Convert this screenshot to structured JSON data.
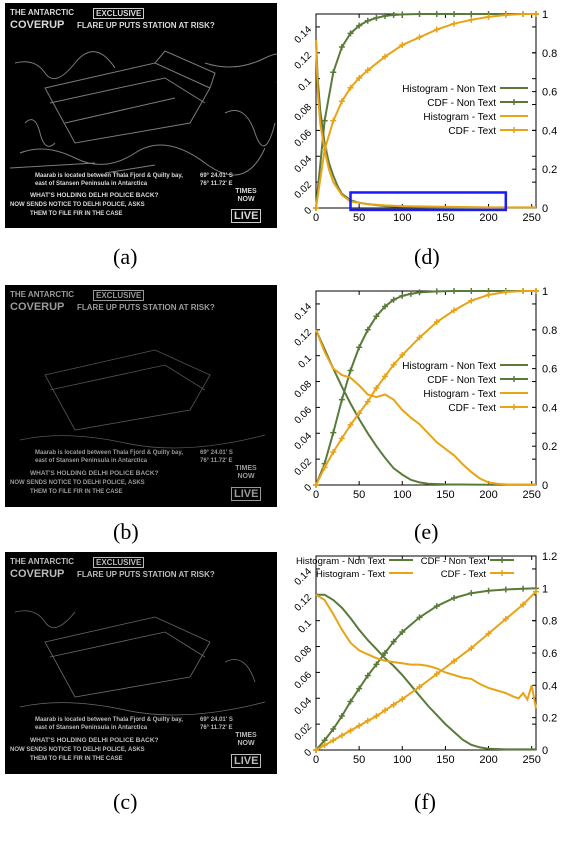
{
  "colors": {
    "green": "#5a7a3a",
    "orange": "#e8a317",
    "highlight": "#1a1aff"
  },
  "images": [
    {
      "caption": "(a)",
      "headline1": "THE ANTARCTIC",
      "badge": "EXCLUSIVE",
      "headline2": "COVERUP",
      "subhead": "FLARE UP PUTS STATION AT RISK?",
      "loc1": "Maarab is located between Thala Fjord & Quilty bay,",
      "loc2": "east of Stansen Peninsula in Antarctica",
      "coord1": "69° 24.01' S",
      "coord2": "76° 11.72' E",
      "ticker1": "WHAT'S HOLDING DELHI POLICE BACK?",
      "ticker2": "NOW SENDS NOTICE TO DELHI POLICE, ASKS",
      "ticker3": "THEM TO FILE FIR IN THE CASE",
      "live": "LIVE",
      "logo": "TIMES NOW"
    },
    {
      "caption": "(b)",
      "headline1": "THE ANTARCTIC",
      "badge": "EXCLUSIVE",
      "headline2": "COVERUP",
      "subhead": "FLARE UP PUTS STATION AT RISK?",
      "loc1": "Maarab is located between Thala Fjord & Quilty bay,",
      "loc2": "east of Stansen Peninsula in Antarctica",
      "coord1": "69° 24.01' S",
      "coord2": "76° 11.72' E",
      "ticker1": "WHAT'S HOLDING DELHI POLICE BACK?",
      "ticker2": "NOW SENDS NOTICE TO DELHI POLICE, ASKS",
      "ticker3": "THEM TO FILE FIR IN THE CASE",
      "live": "LIVE",
      "logo": "TIMES NOW"
    },
    {
      "caption": "(c)",
      "headline1": "THE ANTARCTIC",
      "badge": "EXCLUSIVE",
      "headline2": "COVERUP",
      "subhead": "FLARE UP PUTS STATION AT RISK?",
      "loc1": "Maarab is located between Thala Fjord & Quilty bay,",
      "loc2": "east of Stansen Peninsula in Antarctica",
      "coord1": "69° 24.01' S",
      "coord2": "76° 11.72' E",
      "ticker1": "WHAT'S HOLDING DELHI POLICE BACK?",
      "ticker2": "NOW SENDS NOTICE TO DELHI POLICE, ASKS",
      "ticker3": "THEM TO FILE FIR IN THE CASE",
      "live": "LIVE",
      "logo": "TIMES NOW"
    }
  ],
  "chart_data": [
    {
      "type": "line",
      "caption": "(d)",
      "xlim": [
        0,
        255
      ],
      "ylim": [
        0,
        0.15
      ],
      "y2lim": [
        0,
        1.0
      ],
      "xticks": [
        "0",
        "50",
        "100",
        "150",
        "200",
        "250"
      ],
      "yticks": [
        "0",
        "0.02",
        "0.04",
        "0.06",
        "0.08",
        "0.1",
        "0.12",
        "0.14"
      ],
      "y2ticks": [
        "0",
        "0.2",
        "0.4",
        "0.6",
        "0.8",
        "1"
      ],
      "legend_position": "right-middle",
      "highlight_box": {
        "x": [
          40,
          220
        ],
        "y": [
          -0.0015,
          0.012
        ]
      },
      "series": [
        {
          "name": "Histogram - Non Text",
          "axis": "y",
          "color": "green",
          "marker": "none",
          "x": [
            0,
            2,
            5,
            10,
            15,
            20,
            25,
            30,
            40,
            50,
            60,
            80,
            100,
            150,
            200,
            255
          ],
          "y": [
            0.13,
            0.1,
            0.075,
            0.05,
            0.035,
            0.025,
            0.017,
            0.011,
            0.006,
            0.004,
            0.003,
            0.0015,
            0.001,
            0.0005,
            0.0003,
            0.0003
          ]
        },
        {
          "name": "CDF - Non Text",
          "axis": "y2",
          "color": "green",
          "marker": "plus",
          "x": [
            0,
            10,
            20,
            30,
            40,
            50,
            60,
            70,
            80,
            90,
            100,
            120,
            140,
            160,
            180,
            200,
            220,
            240,
            255
          ],
          "y": [
            0.0,
            0.45,
            0.7,
            0.83,
            0.9,
            0.94,
            0.965,
            0.98,
            0.99,
            0.995,
            0.998,
            1.0,
            1.0,
            1.0,
            1.0,
            1.0,
            1.0,
            1.0,
            1.0
          ]
        },
        {
          "name": "Histogram - Text",
          "axis": "y",
          "color": "orange",
          "marker": "none",
          "x": [
            0,
            2,
            5,
            10,
            15,
            20,
            30,
            40,
            60,
            80,
            100,
            150,
            200,
            255
          ],
          "y": [
            0.13,
            0.09,
            0.065,
            0.045,
            0.03,
            0.02,
            0.01,
            0.005,
            0.003,
            0.002,
            0.0015,
            0.001,
            0.0005,
            0.0005
          ]
        },
        {
          "name": "CDF - Text",
          "axis": "y2",
          "color": "orange",
          "marker": "plus",
          "x": [
            0,
            10,
            20,
            30,
            40,
            50,
            60,
            80,
            100,
            120,
            140,
            160,
            180,
            200,
            220,
            240,
            255
          ],
          "y": [
            0.0,
            0.3,
            0.45,
            0.55,
            0.62,
            0.67,
            0.71,
            0.78,
            0.84,
            0.88,
            0.92,
            0.95,
            0.97,
            0.985,
            0.995,
            1.0,
            1.0
          ]
        }
      ]
    },
    {
      "type": "line",
      "caption": "(e)",
      "xlim": [
        0,
        255
      ],
      "ylim": [
        0,
        0.15
      ],
      "y2lim": [
        0,
        1.0
      ],
      "xticks": [
        "0",
        "50",
        "100",
        "150",
        "200",
        "250"
      ],
      "yticks": [
        "0",
        "0.02",
        "0.04",
        "0.06",
        "0.08",
        "0.1",
        "0.12",
        "0.14"
      ],
      "y2ticks": [
        "0",
        "0.2",
        "0.4",
        "0.6",
        "0.8",
        "1"
      ],
      "legend_position": "right-middle",
      "series": [
        {
          "name": "Histogram - Non Text",
          "axis": "y",
          "color": "green",
          "marker": "none",
          "x": [
            0,
            10,
            20,
            30,
            40,
            50,
            60,
            70,
            80,
            90,
            100,
            110,
            120,
            130,
            150,
            200,
            255
          ],
          "y": [
            0.12,
            0.105,
            0.09,
            0.076,
            0.063,
            0.051,
            0.04,
            0.03,
            0.021,
            0.013,
            0.008,
            0.004,
            0.002,
            0.001,
            0.0005,
            0.0002,
            0.0002
          ]
        },
        {
          "name": "CDF - Non Text",
          "axis": "y2",
          "color": "green",
          "marker": "plus",
          "x": [
            0,
            10,
            20,
            30,
            40,
            50,
            60,
            70,
            80,
            90,
            100,
            110,
            120,
            140,
            160,
            180,
            200,
            220,
            240,
            255
          ],
          "y": [
            0.0,
            0.11,
            0.27,
            0.44,
            0.59,
            0.71,
            0.8,
            0.87,
            0.92,
            0.955,
            0.975,
            0.985,
            0.993,
            0.998,
            1.0,
            1.0,
            1.0,
            1.0,
            1.0,
            1.0
          ]
        },
        {
          "name": "Histogram - Text",
          "axis": "y",
          "color": "orange",
          "marker": "none",
          "x": [
            0,
            10,
            20,
            30,
            40,
            50,
            60,
            70,
            80,
            90,
            100,
            110,
            120,
            130,
            140,
            150,
            160,
            170,
            180,
            190,
            200,
            210,
            220,
            230,
            255
          ],
          "y": [
            0.12,
            0.103,
            0.09,
            0.085,
            0.083,
            0.077,
            0.07,
            0.068,
            0.07,
            0.066,
            0.058,
            0.052,
            0.047,
            0.04,
            0.033,
            0.028,
            0.023,
            0.016,
            0.01,
            0.005,
            0.002,
            0.001,
            0.0005,
            0.0003,
            0.0003
          ]
        },
        {
          "name": "CDF - Text",
          "axis": "y2",
          "color": "orange",
          "marker": "plus",
          "x": [
            0,
            10,
            20,
            30,
            40,
            50,
            60,
            70,
            80,
            90,
            100,
            120,
            140,
            160,
            180,
            200,
            220,
            240,
            255
          ],
          "y": [
            0.0,
            0.09,
            0.17,
            0.24,
            0.31,
            0.37,
            0.43,
            0.5,
            0.56,
            0.62,
            0.67,
            0.76,
            0.84,
            0.9,
            0.95,
            0.98,
            0.995,
            1.0,
            1.0
          ]
        }
      ]
    },
    {
      "type": "line",
      "caption": "(f)",
      "xlim": [
        0,
        255
      ],
      "ylim": [
        0,
        0.15
      ],
      "y2lim": [
        0,
        1.2
      ],
      "xticks": [
        "0",
        "50",
        "100",
        "150",
        "200",
        "250"
      ],
      "yticks": [
        "0",
        "0.02",
        "0.04",
        "0.06",
        "0.08",
        "0.1",
        "0.12",
        "0.14"
      ],
      "y2ticks": [
        "0",
        "0.2",
        "0.4",
        "0.6",
        "0.8",
        "1",
        "1.2"
      ],
      "legend_position": "top",
      "series": [
        {
          "name": "Histogram - Non Text",
          "axis": "y",
          "color": "green",
          "marker": "none",
          "x": [
            0,
            10,
            20,
            30,
            40,
            50,
            60,
            70,
            80,
            90,
            100,
            110,
            120,
            130,
            140,
            150,
            160,
            170,
            180,
            190,
            200,
            220,
            255
          ],
          "y": [
            0.12,
            0.12,
            0.116,
            0.11,
            0.102,
            0.093,
            0.085,
            0.078,
            0.071,
            0.065,
            0.058,
            0.05,
            0.042,
            0.034,
            0.027,
            0.02,
            0.014,
            0.008,
            0.004,
            0.002,
            0.001,
            0.0005,
            0.0005
          ]
        },
        {
          "name": "CDF - Non Text",
          "axis": "y2",
          "color": "green",
          "marker": "plus",
          "x": [
            0,
            10,
            20,
            30,
            40,
            50,
            60,
            70,
            80,
            90,
            100,
            120,
            140,
            160,
            180,
            200,
            220,
            240,
            255
          ],
          "y": [
            0.0,
            0.06,
            0.13,
            0.21,
            0.3,
            0.38,
            0.46,
            0.53,
            0.6,
            0.67,
            0.73,
            0.82,
            0.89,
            0.94,
            0.97,
            0.985,
            0.993,
            0.998,
            1.0
          ]
        },
        {
          "name": "Histogram - Text",
          "axis": "y",
          "color": "orange",
          "marker": "none",
          "x": [
            0,
            10,
            20,
            30,
            40,
            50,
            60,
            70,
            80,
            90,
            100,
            110,
            120,
            130,
            140,
            150,
            160,
            170,
            180,
            190,
            200,
            210,
            220,
            230,
            235,
            240,
            245,
            250,
            255
          ],
          "y": [
            0.12,
            0.116,
            0.105,
            0.093,
            0.083,
            0.077,
            0.074,
            0.071,
            0.069,
            0.068,
            0.067,
            0.066,
            0.066,
            0.065,
            0.063,
            0.06,
            0.058,
            0.056,
            0.055,
            0.051,
            0.048,
            0.046,
            0.044,
            0.041,
            0.04,
            0.044,
            0.039,
            0.05,
            0.032
          ]
        },
        {
          "name": "CDF - Text",
          "axis": "y2",
          "color": "orange",
          "marker": "plus",
          "x": [
            0,
            10,
            20,
            30,
            40,
            50,
            60,
            70,
            80,
            90,
            100,
            120,
            140,
            160,
            180,
            200,
            220,
            240,
            255
          ],
          "y": [
            0.0,
            0.03,
            0.06,
            0.09,
            0.12,
            0.15,
            0.18,
            0.21,
            0.245,
            0.28,
            0.315,
            0.39,
            0.47,
            0.55,
            0.63,
            0.72,
            0.81,
            0.9,
            0.98
          ]
        }
      ]
    }
  ]
}
